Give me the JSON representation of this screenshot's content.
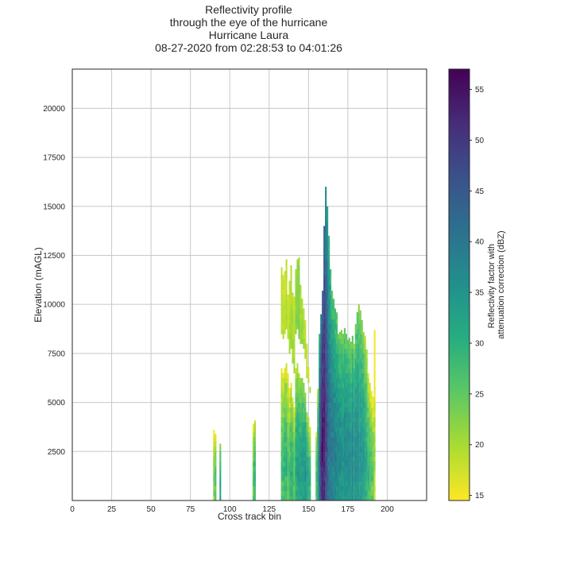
{
  "chart_data": {
    "type": "heatmap",
    "title": [
      "Reflectivity profile",
      "through the eye of the hurricane",
      "Hurricane Laura",
      "08-27-2020 from 02:28:53 to 04:01:26"
    ],
    "xlabel": "Cross track bin",
    "ylabel": "Elevation (mAGL)",
    "xlim": [
      0,
      225
    ],
    "ylim": [
      0,
      22000
    ],
    "xticks": [
      0,
      25,
      50,
      75,
      100,
      125,
      150,
      175,
      200
    ],
    "yticks": [
      2500,
      5000,
      7500,
      10000,
      12500,
      15000,
      17500,
      20000
    ],
    "grid": true,
    "colorbar": {
      "label": [
        "Reflectivity factor with",
        "attenuation correction (dBZ)"
      ],
      "range": [
        14.5,
        57
      ],
      "ticks": [
        15,
        20,
        25,
        30,
        35,
        40,
        45,
        50,
        55
      ],
      "colormap": "viridis_r"
    },
    "columns": [
      {
        "x": 90,
        "top": 3600,
        "core": 25
      },
      {
        "x": 91,
        "top": 3400,
        "core": 27
      },
      {
        "x": 94,
        "top": 2900,
        "core": 33
      },
      {
        "x": 115,
        "top": 3900,
        "core": 27
      },
      {
        "x": 116,
        "top": 4100,
        "core": 30
      },
      {
        "x": 133,
        "top": 11900,
        "core": 21,
        "low_top": 6600,
        "low_core": 28
      },
      {
        "x": 134,
        "top": 11500,
        "core": 20,
        "low_top": 6300,
        "low_core": 29
      },
      {
        "x": 135,
        "top": 11700,
        "core": 20,
        "low_top": 6700,
        "low_core": 30
      },
      {
        "x": 136,
        "top": 12300,
        "core": 21,
        "low_top": 6900,
        "low_core": 30
      },
      {
        "x": 137,
        "top": 10500,
        "core": 20,
        "low_top": 6400,
        "low_core": 27
      },
      {
        "x": 138,
        "top": 11200,
        "core": 21,
        "low_top": 5500,
        "low_core": 28
      },
      {
        "x": 139,
        "top": 12000,
        "core": 22,
        "low_top": 5800,
        "low_core": 31
      },
      {
        "x": 140,
        "top": 10600,
        "core": 22,
        "low_top": 5200,
        "low_core": 30
      },
      {
        "x": 141,
        "top": 10400,
        "core": 21,
        "low_top": 4600,
        "low_core": 27
      },
      {
        "x": 142,
        "top": 11800,
        "core": 23,
        "low_top": 6500,
        "low_core": 32
      },
      {
        "x": 143,
        "top": 12300,
        "core": 24,
        "low_top": 6800,
        "low_core": 33
      },
      {
        "x": 144,
        "top": 12400,
        "core": 24,
        "low_top": 6400,
        "low_core": 34
      },
      {
        "x": 145,
        "top": 11000,
        "core": 22,
        "low_top": 6200,
        "low_core": 33
      },
      {
        "x": 146,
        "top": 10300,
        "core": 23,
        "low_top": 6000,
        "low_core": 35
      },
      {
        "x": 147,
        "top": 9800,
        "core": 22,
        "low_top": 5800,
        "low_core": 35
      },
      {
        "x": 148,
        "top": 9200,
        "core": 21,
        "low_top": 5400,
        "low_core": 36
      },
      {
        "x": 149,
        "top": 8000,
        "core": 21,
        "low_top": 4300,
        "low_core": 34
      },
      {
        "x": 150,
        "top": 6800,
        "core": 20,
        "low_top": 4000,
        "low_core": 32
      },
      {
        "x": 151,
        "top": 5800,
        "core": 22,
        "low_top": 3500,
        "low_core": 30
      },
      {
        "x": 155,
        "top": 3500,
        "core": 28
      },
      {
        "x": 156,
        "top": 5700,
        "core": 34
      },
      {
        "x": 157,
        "top": 8500,
        "core": 44
      },
      {
        "x": 158,
        "top": 9500,
        "core": 52
      },
      {
        "x": 159,
        "top": 10700,
        "core": 56
      },
      {
        "x": 160,
        "top": 14000,
        "core": 54
      },
      {
        "x": 161,
        "top": 16000,
        "core": 50
      },
      {
        "x": 162,
        "top": 15000,
        "core": 46
      },
      {
        "x": 163,
        "top": 13500,
        "core": 43
      },
      {
        "x": 164,
        "top": 11800,
        "core": 41
      },
      {
        "x": 165,
        "top": 10700,
        "core": 40
      },
      {
        "x": 166,
        "top": 10300,
        "core": 39
      },
      {
        "x": 167,
        "top": 9800,
        "core": 39
      },
      {
        "x": 168,
        "top": 9600,
        "core": 38
      },
      {
        "x": 169,
        "top": 8500,
        "core": 38
      },
      {
        "x": 170,
        "top": 8600,
        "core": 37
      },
      {
        "x": 171,
        "top": 8700,
        "core": 37
      },
      {
        "x": 172,
        "top": 8500,
        "core": 36
      },
      {
        "x": 173,
        "top": 8800,
        "core": 38
      },
      {
        "x": 174,
        "top": 8500,
        "core": 37
      },
      {
        "x": 175,
        "top": 8200,
        "core": 38
      },
      {
        "x": 176,
        "top": 8300,
        "core": 37
      },
      {
        "x": 177,
        "top": 8100,
        "core": 36
      },
      {
        "x": 178,
        "top": 8400,
        "core": 38
      },
      {
        "x": 179,
        "top": 8000,
        "core": 36
      },
      {
        "x": 180,
        "top": 9000,
        "core": 37
      },
      {
        "x": 181,
        "top": 9600,
        "core": 38
      },
      {
        "x": 182,
        "top": 10000,
        "core": 36
      },
      {
        "x": 183,
        "top": 9700,
        "core": 35
      },
      {
        "x": 184,
        "top": 9200,
        "core": 36
      },
      {
        "x": 185,
        "top": 8600,
        "core": 35
      },
      {
        "x": 186,
        "top": 8400,
        "core": 33
      },
      {
        "x": 187,
        "top": 7700,
        "core": 32
      },
      {
        "x": 188,
        "top": 6500,
        "core": 30
      },
      {
        "x": 189,
        "top": 6000,
        "core": 29
      },
      {
        "x": 190,
        "top": 5600,
        "core": 27
      },
      {
        "x": 191,
        "top": 5300,
        "core": 26
      },
      {
        "x": 192,
        "top": 8700,
        "core": 21
      }
    ]
  }
}
